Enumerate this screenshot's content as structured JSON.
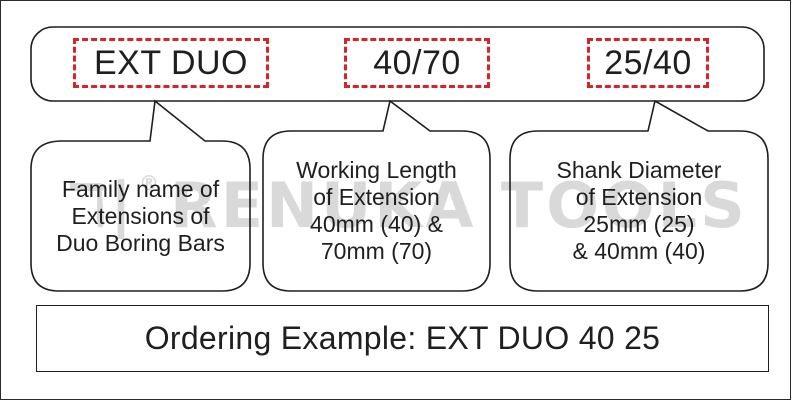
{
  "codes": [
    {
      "label": "EXT DUO"
    },
    {
      "label": "40/70"
    },
    {
      "label": "25/40"
    }
  ],
  "bubbles": [
    {
      "text": "Family name of\nExtensions of\nDuo Boring Bars"
    },
    {
      "text": "Working Length\nof Extension\n40mm (40) &\n70mm (70)"
    },
    {
      "text": "Shank Diameter\nof Extension\n25mm (25)\n& 40mm (40)"
    }
  ],
  "ordering_example": "Ordering Example: EXT DUO 40 25",
  "watermark": {
    "logo": "ℸ|",
    "registered": "®",
    "text": "RENUKA TOOLS"
  },
  "colors": {
    "accent": "#d6252a",
    "outline": "#1f1f1f",
    "watermark": "#d9d9d9"
  }
}
